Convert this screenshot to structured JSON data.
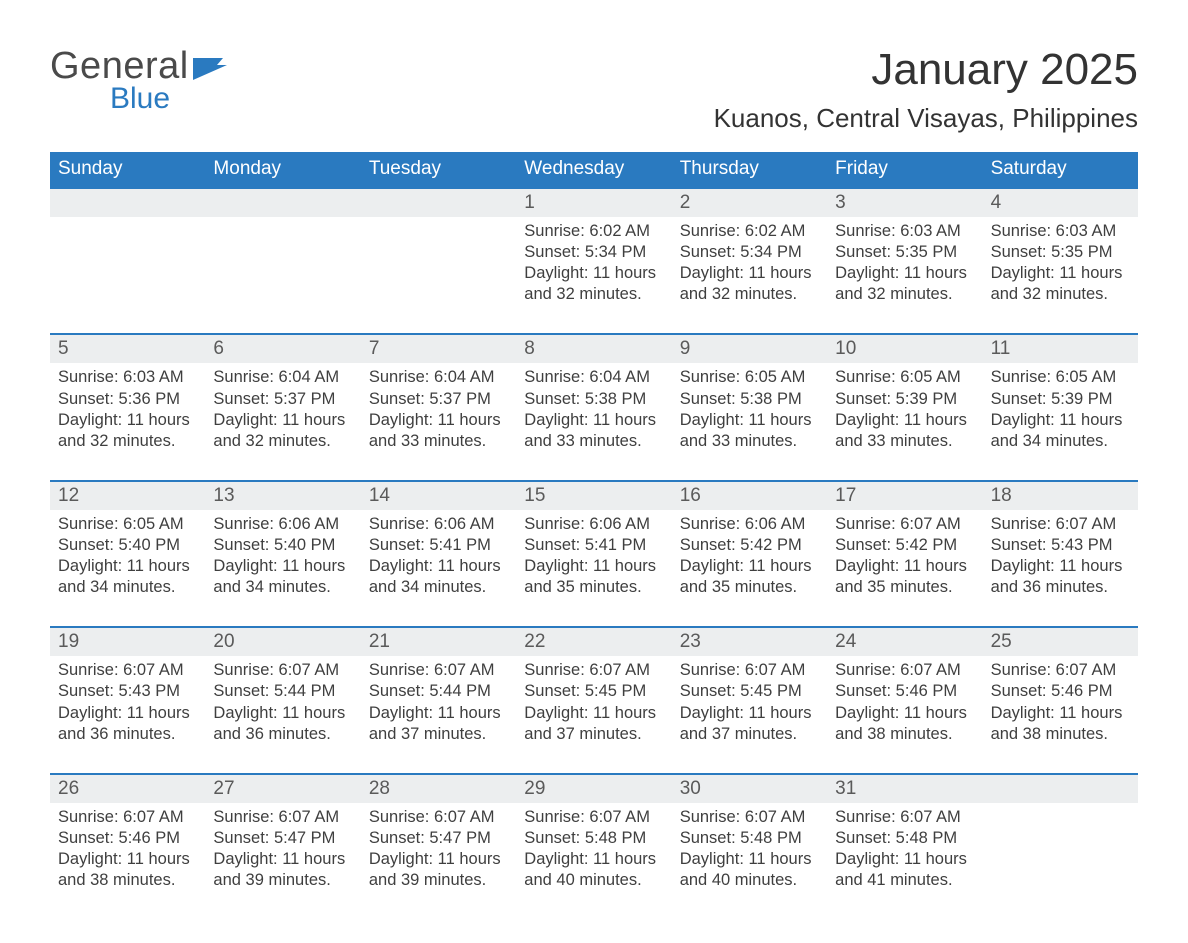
{
  "logo": {
    "word1": "General",
    "word2": "Blue"
  },
  "header": {
    "month_title": "January 2025",
    "location": "Kuanos, Central Visayas, Philippines"
  },
  "colors": {
    "header_blue": "#2a7ac0",
    "row_band": "#eceeef",
    "text": "#3f3f3f",
    "logo_gray": "#4a4a4a"
  },
  "fonts": {
    "month_title_pt": 44,
    "location_pt": 26,
    "weekday_pt": 19,
    "date_pt": 19,
    "detail_pt": 16.5
  },
  "weekdays": [
    "Sunday",
    "Monday",
    "Tuesday",
    "Wednesday",
    "Thursday",
    "Friday",
    "Saturday"
  ],
  "weeks": [
    [
      {
        "date": "",
        "sunrise": "",
        "sunset": "",
        "daylight": ""
      },
      {
        "date": "",
        "sunrise": "",
        "sunset": "",
        "daylight": ""
      },
      {
        "date": "",
        "sunrise": "",
        "sunset": "",
        "daylight": ""
      },
      {
        "date": "1",
        "sunrise": "Sunrise: 6:02 AM",
        "sunset": "Sunset: 5:34 PM",
        "daylight": "Daylight: 11 hours and 32 minutes."
      },
      {
        "date": "2",
        "sunrise": "Sunrise: 6:02 AM",
        "sunset": "Sunset: 5:34 PM",
        "daylight": "Daylight: 11 hours and 32 minutes."
      },
      {
        "date": "3",
        "sunrise": "Sunrise: 6:03 AM",
        "sunset": "Sunset: 5:35 PM",
        "daylight": "Daylight: 11 hours and 32 minutes."
      },
      {
        "date": "4",
        "sunrise": "Sunrise: 6:03 AM",
        "sunset": "Sunset: 5:35 PM",
        "daylight": "Daylight: 11 hours and 32 minutes."
      }
    ],
    [
      {
        "date": "5",
        "sunrise": "Sunrise: 6:03 AM",
        "sunset": "Sunset: 5:36 PM",
        "daylight": "Daylight: 11 hours and 32 minutes."
      },
      {
        "date": "6",
        "sunrise": "Sunrise: 6:04 AM",
        "sunset": "Sunset: 5:37 PM",
        "daylight": "Daylight: 11 hours and 32 minutes."
      },
      {
        "date": "7",
        "sunrise": "Sunrise: 6:04 AM",
        "sunset": "Sunset: 5:37 PM",
        "daylight": "Daylight: 11 hours and 33 minutes."
      },
      {
        "date": "8",
        "sunrise": "Sunrise: 6:04 AM",
        "sunset": "Sunset: 5:38 PM",
        "daylight": "Daylight: 11 hours and 33 minutes."
      },
      {
        "date": "9",
        "sunrise": "Sunrise: 6:05 AM",
        "sunset": "Sunset: 5:38 PM",
        "daylight": "Daylight: 11 hours and 33 minutes."
      },
      {
        "date": "10",
        "sunrise": "Sunrise: 6:05 AM",
        "sunset": "Sunset: 5:39 PM",
        "daylight": "Daylight: 11 hours and 33 minutes."
      },
      {
        "date": "11",
        "sunrise": "Sunrise: 6:05 AM",
        "sunset": "Sunset: 5:39 PM",
        "daylight": "Daylight: 11 hours and 34 minutes."
      }
    ],
    [
      {
        "date": "12",
        "sunrise": "Sunrise: 6:05 AM",
        "sunset": "Sunset: 5:40 PM",
        "daylight": "Daylight: 11 hours and 34 minutes."
      },
      {
        "date": "13",
        "sunrise": "Sunrise: 6:06 AM",
        "sunset": "Sunset: 5:40 PM",
        "daylight": "Daylight: 11 hours and 34 minutes."
      },
      {
        "date": "14",
        "sunrise": "Sunrise: 6:06 AM",
        "sunset": "Sunset: 5:41 PM",
        "daylight": "Daylight: 11 hours and 34 minutes."
      },
      {
        "date": "15",
        "sunrise": "Sunrise: 6:06 AM",
        "sunset": "Sunset: 5:41 PM",
        "daylight": "Daylight: 11 hours and 35 minutes."
      },
      {
        "date": "16",
        "sunrise": "Sunrise: 6:06 AM",
        "sunset": "Sunset: 5:42 PM",
        "daylight": "Daylight: 11 hours and 35 minutes."
      },
      {
        "date": "17",
        "sunrise": "Sunrise: 6:07 AM",
        "sunset": "Sunset: 5:42 PM",
        "daylight": "Daylight: 11 hours and 35 minutes."
      },
      {
        "date": "18",
        "sunrise": "Sunrise: 6:07 AM",
        "sunset": "Sunset: 5:43 PM",
        "daylight": "Daylight: 11 hours and 36 minutes."
      }
    ],
    [
      {
        "date": "19",
        "sunrise": "Sunrise: 6:07 AM",
        "sunset": "Sunset: 5:43 PM",
        "daylight": "Daylight: 11 hours and 36 minutes."
      },
      {
        "date": "20",
        "sunrise": "Sunrise: 6:07 AM",
        "sunset": "Sunset: 5:44 PM",
        "daylight": "Daylight: 11 hours and 36 minutes."
      },
      {
        "date": "21",
        "sunrise": "Sunrise: 6:07 AM",
        "sunset": "Sunset: 5:44 PM",
        "daylight": "Daylight: 11 hours and 37 minutes."
      },
      {
        "date": "22",
        "sunrise": "Sunrise: 6:07 AM",
        "sunset": "Sunset: 5:45 PM",
        "daylight": "Daylight: 11 hours and 37 minutes."
      },
      {
        "date": "23",
        "sunrise": "Sunrise: 6:07 AM",
        "sunset": "Sunset: 5:45 PM",
        "daylight": "Daylight: 11 hours and 37 minutes."
      },
      {
        "date": "24",
        "sunrise": "Sunrise: 6:07 AM",
        "sunset": "Sunset: 5:46 PM",
        "daylight": "Daylight: 11 hours and 38 minutes."
      },
      {
        "date": "25",
        "sunrise": "Sunrise: 6:07 AM",
        "sunset": "Sunset: 5:46 PM",
        "daylight": "Daylight: 11 hours and 38 minutes."
      }
    ],
    [
      {
        "date": "26",
        "sunrise": "Sunrise: 6:07 AM",
        "sunset": "Sunset: 5:46 PM",
        "daylight": "Daylight: 11 hours and 38 minutes."
      },
      {
        "date": "27",
        "sunrise": "Sunrise: 6:07 AM",
        "sunset": "Sunset: 5:47 PM",
        "daylight": "Daylight: 11 hours and 39 minutes."
      },
      {
        "date": "28",
        "sunrise": "Sunrise: 6:07 AM",
        "sunset": "Sunset: 5:47 PM",
        "daylight": "Daylight: 11 hours and 39 minutes."
      },
      {
        "date": "29",
        "sunrise": "Sunrise: 6:07 AM",
        "sunset": "Sunset: 5:48 PM",
        "daylight": "Daylight: 11 hours and 40 minutes."
      },
      {
        "date": "30",
        "sunrise": "Sunrise: 6:07 AM",
        "sunset": "Sunset: 5:48 PM",
        "daylight": "Daylight: 11 hours and 40 minutes."
      },
      {
        "date": "31",
        "sunrise": "Sunrise: 6:07 AM",
        "sunset": "Sunset: 5:48 PM",
        "daylight": "Daylight: 11 hours and 41 minutes."
      },
      {
        "date": "",
        "sunrise": "",
        "sunset": "",
        "daylight": ""
      }
    ]
  ]
}
